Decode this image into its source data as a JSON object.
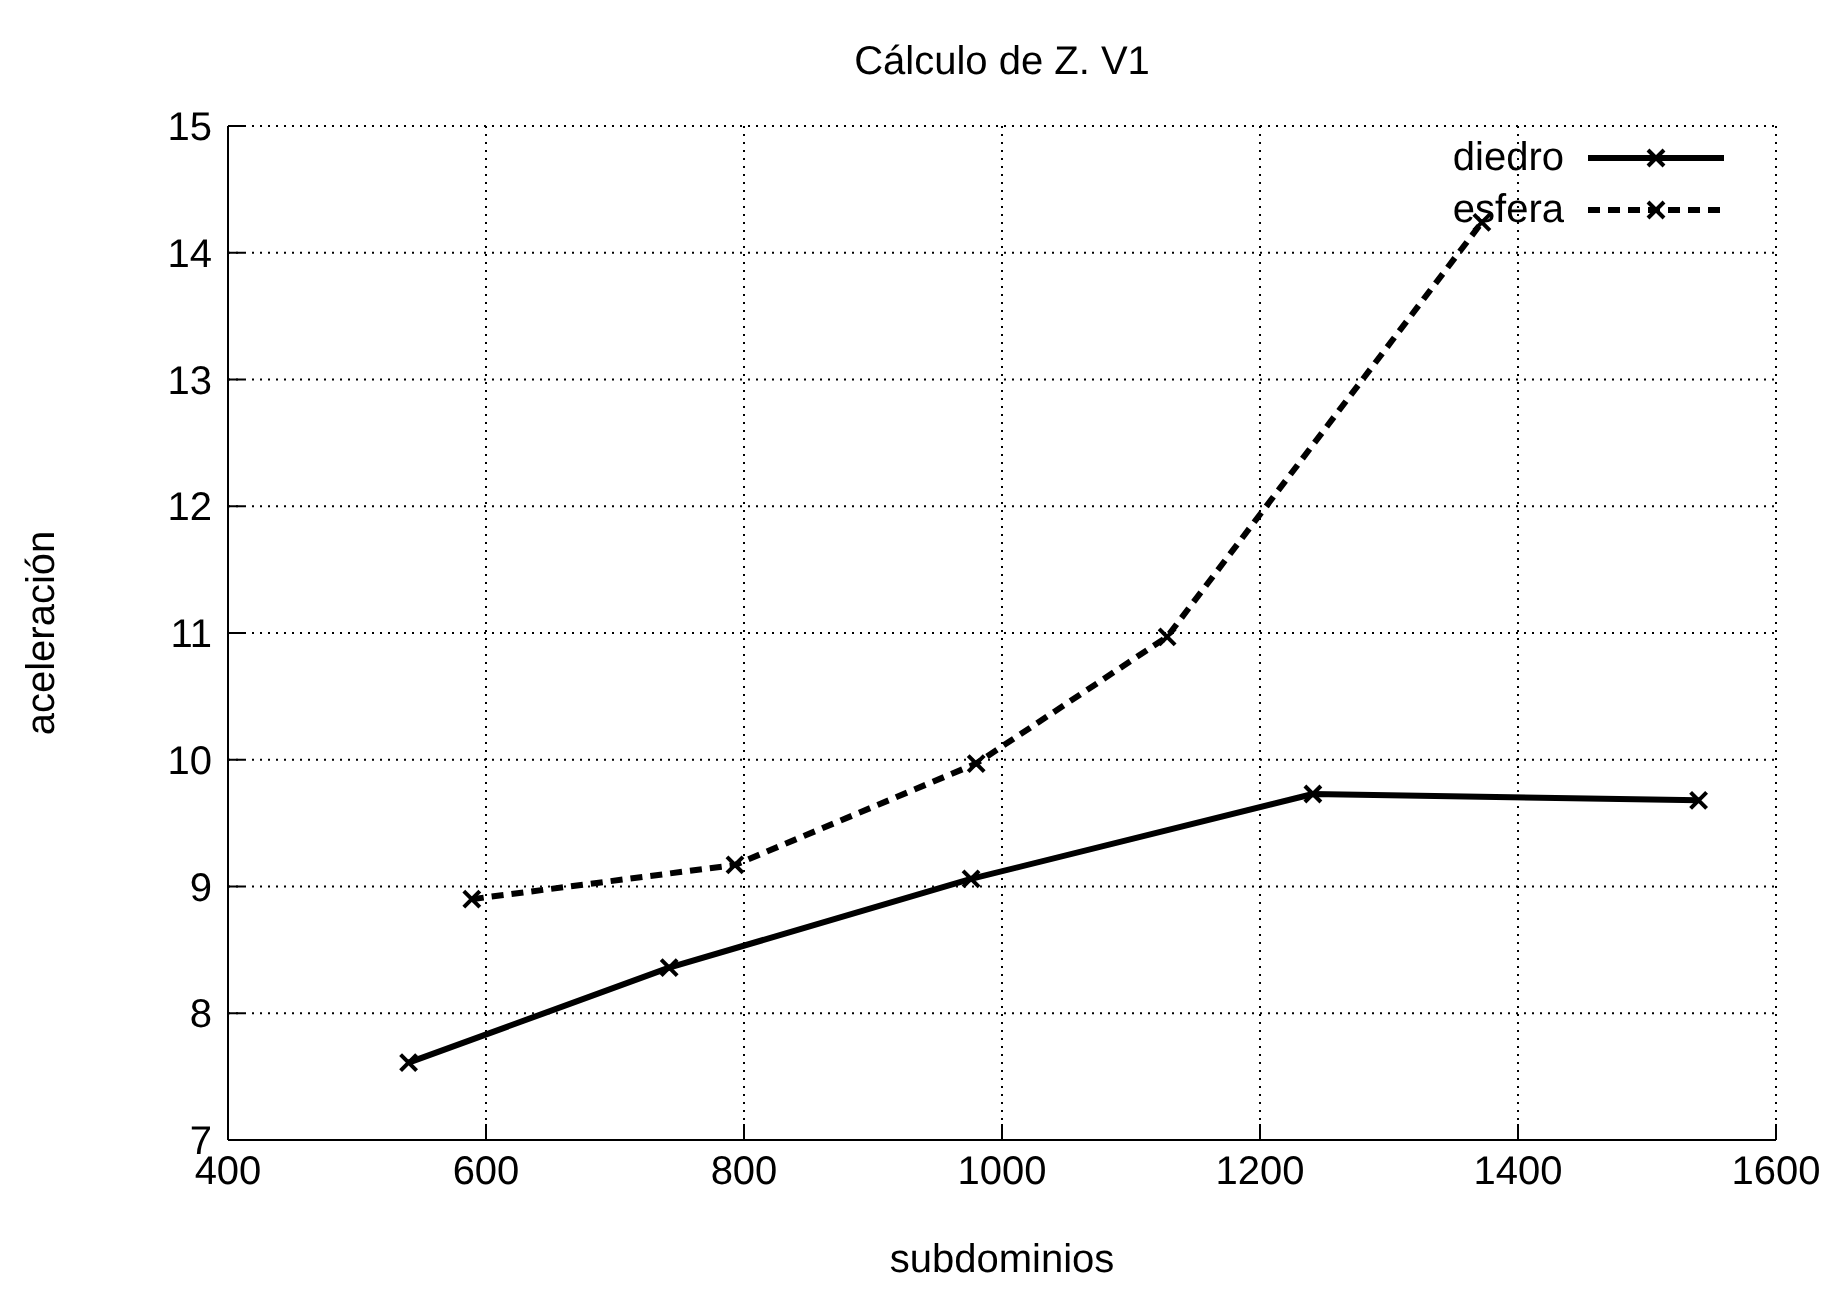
{
  "chart_data": {
    "type": "line",
    "title": "Cálculo de Z. V1",
    "xlabel": "subdominios",
    "ylabel": "aceleración",
    "xlim": [
      400,
      1600
    ],
    "xticks": [
      400,
      600,
      800,
      1000,
      1200,
      1400,
      1600
    ],
    "ylim": [
      7,
      15
    ],
    "yticks": [
      7,
      8,
      9,
      10,
      11,
      12,
      13,
      14,
      15
    ],
    "grid": true,
    "legend": "top right",
    "series": [
      {
        "name": "diedro",
        "color": "#000000",
        "line_style": "solid",
        "marker": "cross",
        "x": [
          540,
          742,
          976,
          1241,
          1540
        ],
        "values": [
          7.61,
          8.36,
          9.06,
          9.73,
          9.68
        ]
      },
      {
        "name": "esfera",
        "color": "#000000",
        "line_style": "dashed",
        "marker": "cross",
        "x": [
          589,
          793,
          980,
          1128,
          1372
        ],
        "values": [
          8.9,
          9.17,
          9.97,
          10.97,
          14.24
        ]
      }
    ]
  }
}
